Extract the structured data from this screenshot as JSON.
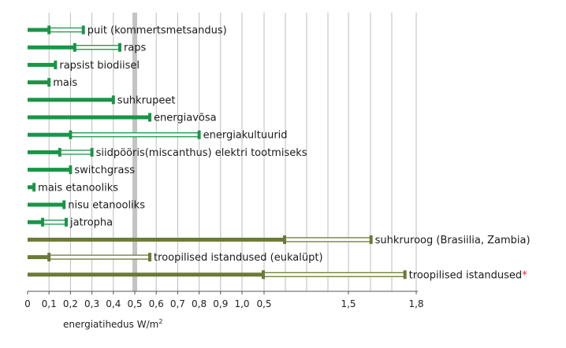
{
  "chart_data": {
    "type": "bar",
    "orientation": "horizontal",
    "xlabel": "energiatihedus W/m",
    "xlabel_superscript": "2",
    "x_scale": "broken axis: linear 0–1.0 with 0.1 steps, then compressed section 0.5–1.8",
    "tick_labels": [
      "0",
      "0,1",
      "0,2",
      "0,3",
      "0,4",
      "0,5",
      "0,6",
      "0,7",
      "0,8",
      "0,9",
      "1,0",
      "0,5",
      "1,5",
      "1,8"
    ],
    "reference_line": 0.5,
    "grid": true,
    "colors": {
      "green": "#1a9547",
      "olive": "#6b7a35",
      "reference": "#c4c4c4",
      "axis": "#555555",
      "grid": "#bdbdbd",
      "asterisk": "#e0232a"
    },
    "series": [
      {
        "label": "puit (kommertsmetsandus)",
        "min": 0.1,
        "max": 0.26,
        "color": "green"
      },
      {
        "label": "raps",
        "min": 0.22,
        "max": 0.43,
        "color": "green"
      },
      {
        "label": "rapsist biodiisel",
        "min": 0.13,
        "max": 0.13,
        "color": "green"
      },
      {
        "label": "mais",
        "min": 0.1,
        "max": 0.1,
        "color": "green"
      },
      {
        "label": "suhkrupeet",
        "min": 0.4,
        "max": 0.4,
        "color": "green"
      },
      {
        "label": "energiavõsa",
        "min": 0.57,
        "max": 0.57,
        "color": "green"
      },
      {
        "label": "energiakultuurid",
        "min": 0.2,
        "max": 0.8,
        "color": "green"
      },
      {
        "label": "siidpööris(miscanthus) elektri tootmiseks",
        "min": 0.15,
        "max": 0.3,
        "color": "green"
      },
      {
        "label": "switchgrass",
        "min": 0.2,
        "max": 0.2,
        "color": "green"
      },
      {
        "label": "mais etanooliks",
        "min": 0.03,
        "max": 0.03,
        "color": "green"
      },
      {
        "label": "nisu etanooliks",
        "min": 0.17,
        "max": 0.17,
        "color": "green"
      },
      {
        "label": "jatropha",
        "min": 0.07,
        "max": 0.18,
        "color": "green"
      },
      {
        "label": "suhkruroog (Brasiilia, Zambia)",
        "min": 1.2,
        "max": 1.6,
        "color": "olive"
      },
      {
        "label": "troopilised istandused (eukalüpt)",
        "min": 0.1,
        "max": 0.57,
        "color": "olive"
      },
      {
        "label": "troopilised istandused",
        "min": 1.1,
        "max": 1.75,
        "color": "olive",
        "asterisk": "*"
      }
    ]
  }
}
